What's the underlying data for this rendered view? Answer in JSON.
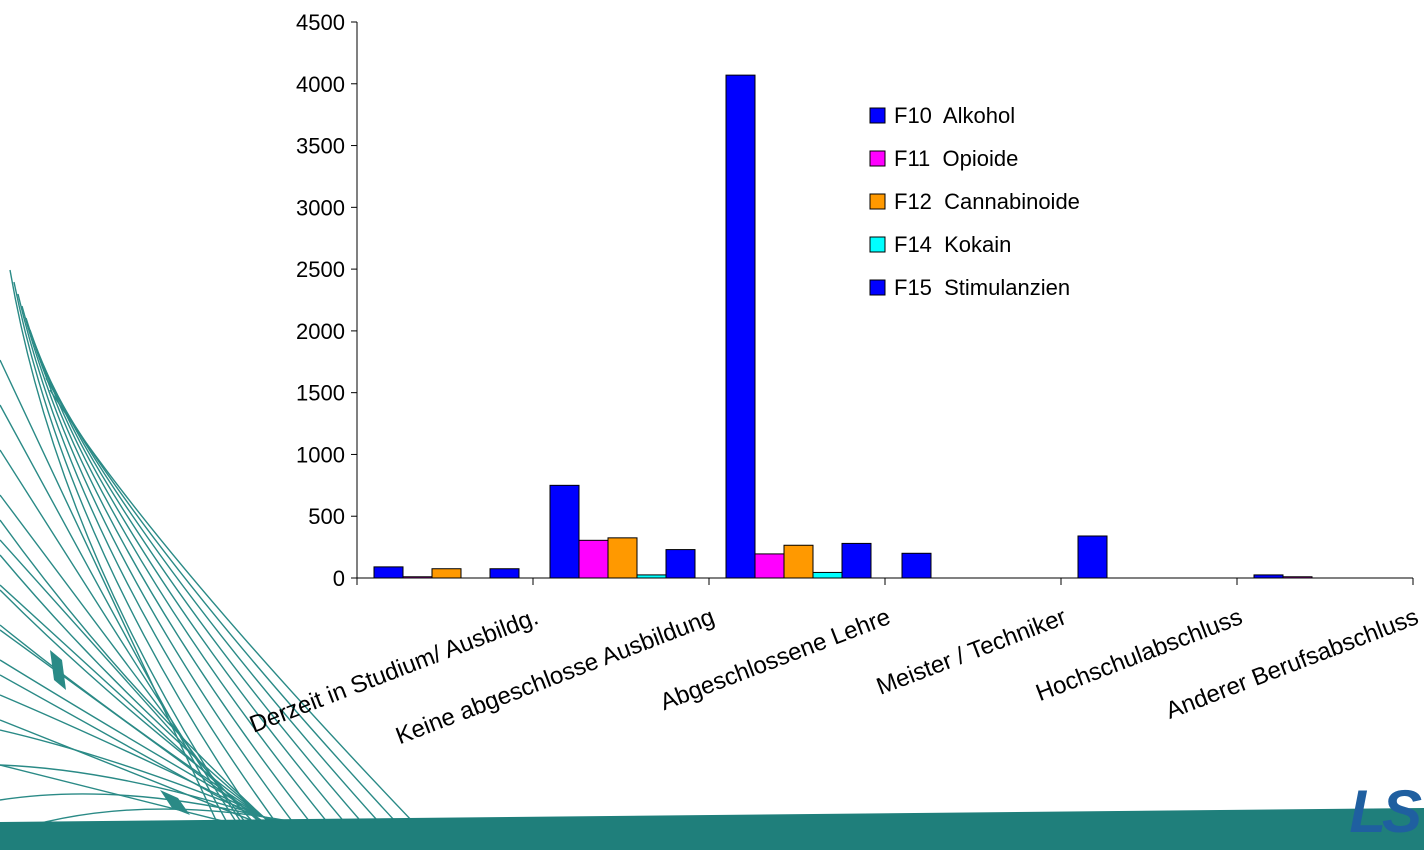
{
  "chart_data": {
    "type": "bar",
    "categories": [
      "Derzeit in Studium/ Ausbildg.",
      "Keine abgeschlosse Ausbildung",
      "Abgeschlossene Lehre",
      "Meister / Techniker",
      "Hochschulabschluss",
      "Anderer Berufsabschluss"
    ],
    "series": [
      {
        "name": "F10  Alkohol",
        "color": "#0000ff",
        "values": [
          90,
          750,
          4070,
          200,
          340,
          25
        ]
      },
      {
        "name": "F11  Opioide",
        "color": "#ff00ff",
        "values": [
          10,
          305,
          195,
          0,
          0,
          10
        ]
      },
      {
        "name": "F12  Cannabinoide",
        "color": "#ff9900",
        "values": [
          75,
          325,
          265,
          0,
          0,
          0
        ]
      },
      {
        "name": "F14  Kokain",
        "color": "#00ffff",
        "values": [
          0,
          25,
          45,
          0,
          0,
          0
        ]
      },
      {
        "name": "F15  Stimulanzien",
        "color": "#0000ff",
        "values": [
          75,
          230,
          280,
          0,
          0,
          0
        ]
      }
    ],
    "yticks": [
      0,
      500,
      1000,
      1500,
      2000,
      2500,
      3000,
      3500,
      4000,
      4500
    ],
    "ylim": [
      0,
      4500
    ],
    "grid": false,
    "legend": "top-right",
    "title": "",
    "xlabel": "",
    "ylabel": ""
  },
  "decoration": {
    "accent_color": "#2a8a86",
    "band_color": "#1f7f7b",
    "logo_text": "LS",
    "logo_color": "#1f5fa0"
  }
}
